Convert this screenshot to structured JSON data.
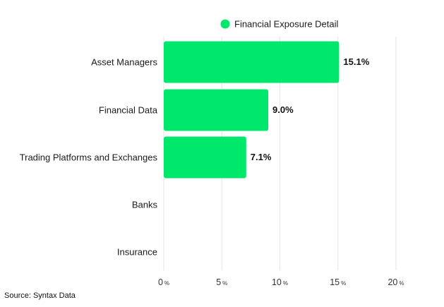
{
  "colors": {
    "bar": "#00e86b",
    "legend_dot": "#00e86b"
  },
  "source": "Source: Syntax Data",
  "chart_data": {
    "type": "bar",
    "orientation": "horizontal",
    "legend": [
      "Financial Exposure Detail"
    ],
    "legend_position": "top",
    "categories": [
      "Asset Managers",
      "Financial Data",
      "Trading Platforms and Exchanges",
      "Banks",
      "Insurance"
    ],
    "series": [
      {
        "name": "Financial Exposure Detail",
        "values": [
          15.1,
          9.0,
          7.1,
          null,
          null
        ],
        "labels": [
          "15.1%",
          "9.0%",
          "7.1%",
          "",
          ""
        ]
      }
    ],
    "xlim": [
      0,
      20
    ],
    "xticks": [
      {
        "num": "0",
        "unit": "%"
      },
      {
        "num": "5",
        "unit": "%"
      },
      {
        "num": "10",
        "unit": "%"
      },
      {
        "num": "15",
        "unit": "%"
      },
      {
        "num": "20",
        "unit": "%"
      }
    ],
    "tick_values": [
      0,
      5,
      10,
      15,
      20
    ],
    "grid": true
  }
}
